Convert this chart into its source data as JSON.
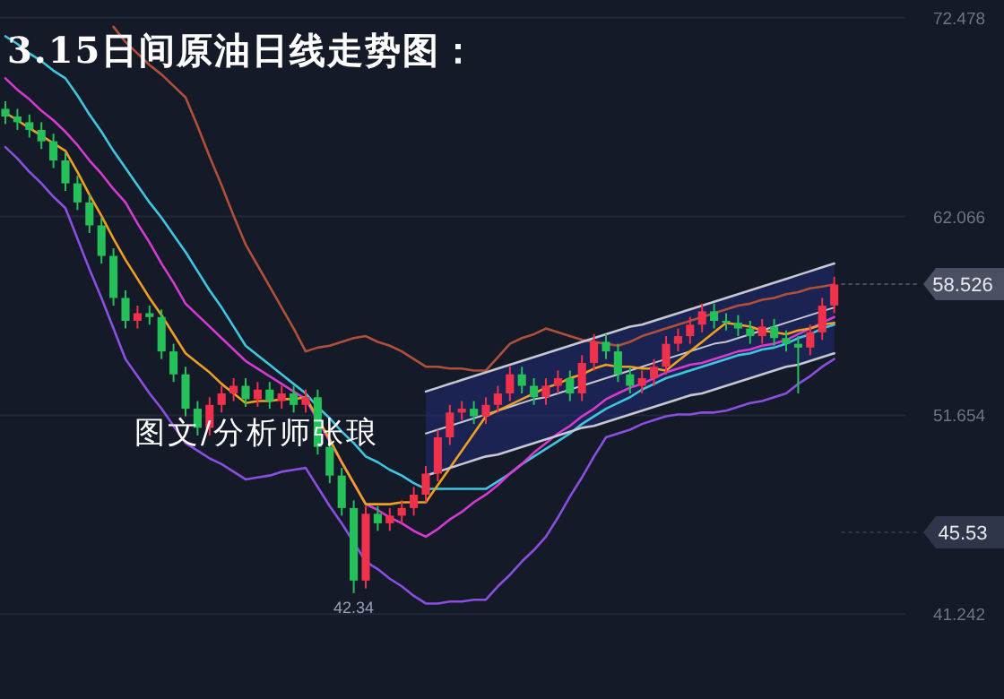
{
  "chart_data": {
    "type": "candlestick",
    "title": "3.15日间原油日线走势图：",
    "annotations": [
      "图文/分析师张琅",
      {
        "text": "42.34",
        "y": 42.34
      }
    ],
    "categories": [
      null,
      null,
      null,
      null,
      null,
      null,
      null,
      null,
      null,
      null,
      null,
      null,
      null,
      null,
      null,
      null,
      null,
      null,
      null,
      null,
      null,
      null,
      null,
      null,
      null,
      null,
      null,
      null,
      null,
      null,
      null,
      null,
      null,
      null,
      null,
      null,
      null,
      null,
      null,
      null,
      null,
      null,
      null,
      null,
      null,
      null,
      null,
      null,
      null,
      null,
      null,
      null,
      null,
      null,
      null,
      null,
      null,
      null,
      null,
      null,
      null,
      null,
      null,
      null,
      null,
      null,
      null,
      null,
      null,
      null
    ],
    "ohlc": [
      [
        67.7,
        68.1,
        66.9,
        67.3
      ],
      [
        67.3,
        67.7,
        66.6,
        67.0
      ],
      [
        67.0,
        67.4,
        66.2,
        66.6
      ],
      [
        66.6,
        67.0,
        65.6,
        66.0
      ],
      [
        66.0,
        66.4,
        64.6,
        65.0
      ],
      [
        65.0,
        65.4,
        63.4,
        63.8
      ],
      [
        63.8,
        64.2,
        62.4,
        62.8
      ],
      [
        62.8,
        63.2,
        61.2,
        61.6
      ],
      [
        61.6,
        62.0,
        59.6,
        60.0
      ],
      [
        60.0,
        60.4,
        57.4,
        57.8
      ],
      [
        57.8,
        58.2,
        56.2,
        56.6
      ],
      [
        56.6,
        57.4,
        56.2,
        57.0
      ],
      [
        57.0,
        57.4,
        56.4,
        56.8
      ],
      [
        56.8,
        57.2,
        54.6,
        55.0
      ],
      [
        55.0,
        55.4,
        53.4,
        53.8
      ],
      [
        53.8,
        54.2,
        51.6,
        52.0
      ],
      [
        52.0,
        52.4,
        50.6,
        51.0
      ],
      [
        51.0,
        52.6,
        50.6,
        52.2
      ],
      [
        52.2,
        53.2,
        51.8,
        52.8
      ],
      [
        52.8,
        53.6,
        52.4,
        53.2
      ],
      [
        53.2,
        53.6,
        52.1,
        52.5
      ],
      [
        52.5,
        53.4,
        52.1,
        53.0
      ],
      [
        53.0,
        53.4,
        52.0,
        52.4
      ],
      [
        52.4,
        53.2,
        52.0,
        52.8
      ],
      [
        52.8,
        53.2,
        51.8,
        52.2
      ],
      [
        52.2,
        53.0,
        51.8,
        52.6
      ],
      [
        52.6,
        53.0,
        49.6,
        50.0
      ],
      [
        50.0,
        50.4,
        48.1,
        48.5
      ],
      [
        48.5,
        48.9,
        46.4,
        46.8
      ],
      [
        46.8,
        47.2,
        42.34,
        43.0
      ],
      [
        43.0,
        46.9,
        42.6,
        46.5
      ],
      [
        46.5,
        46.9,
        45.6,
        46.0
      ],
      [
        46.0,
        46.8,
        45.6,
        46.4
      ],
      [
        46.4,
        47.2,
        46.0,
        46.8
      ],
      [
        46.8,
        47.9,
        46.4,
        47.5
      ],
      [
        47.5,
        49.0,
        47.1,
        48.6
      ],
      [
        48.6,
        50.9,
        48.2,
        50.5
      ],
      [
        50.5,
        52.2,
        50.1,
        51.8
      ],
      [
        51.8,
        52.4,
        51.4,
        52.0
      ],
      [
        52.0,
        52.4,
        51.2,
        51.6
      ],
      [
        51.6,
        52.6,
        51.2,
        52.2
      ],
      [
        52.2,
        53.2,
        51.8,
        52.8
      ],
      [
        52.8,
        54.2,
        52.4,
        53.8
      ],
      [
        53.8,
        54.2,
        52.8,
        53.2
      ],
      [
        53.2,
        53.6,
        52.2,
        52.6
      ],
      [
        52.6,
        53.6,
        52.2,
        53.2
      ],
      [
        53.2,
        54.0,
        52.8,
        53.6
      ],
      [
        53.6,
        54.0,
        52.4,
        52.8
      ],
      [
        52.8,
        54.8,
        52.4,
        54.4
      ],
      [
        54.4,
        55.9,
        54.0,
        55.5
      ],
      [
        55.5,
        55.9,
        54.6,
        55.0
      ],
      [
        55.0,
        55.4,
        53.4,
        53.8
      ],
      [
        53.8,
        54.2,
        52.8,
        53.2
      ],
      [
        53.2,
        54.0,
        52.8,
        53.6
      ],
      [
        53.6,
        54.6,
        53.2,
        54.2
      ],
      [
        54.2,
        55.8,
        53.8,
        55.4
      ],
      [
        55.4,
        56.2,
        55.0,
        55.8
      ],
      [
        55.8,
        56.8,
        55.4,
        56.4
      ],
      [
        56.4,
        57.5,
        56.0,
        57.1
      ],
      [
        57.1,
        57.5,
        56.2,
        56.6
      ],
      [
        56.6,
        57.0,
        56.1,
        56.5
      ],
      [
        56.5,
        56.9,
        55.8,
        56.2
      ],
      [
        56.2,
        56.6,
        55.4,
        55.8
      ],
      [
        55.8,
        56.7,
        55.4,
        56.3
      ],
      [
        56.3,
        56.7,
        55.3,
        55.7
      ],
      [
        55.7,
        56.1,
        55.0,
        55.4
      ],
      [
        55.4,
        55.8,
        52.8,
        55.2
      ],
      [
        55.2,
        56.4,
        54.8,
        56.0
      ],
      [
        56.0,
        57.8,
        55.6,
        57.4
      ],
      [
        57.4,
        58.9,
        57.0,
        58.5
      ]
    ],
    "series": [
      {
        "type": "line",
        "color": "#3fc6e0",
        "values": [
          71.5,
          71.1,
          70.6,
          70.2,
          69.7,
          69.3,
          68.4,
          67.4,
          66.5,
          65.5,
          64.6,
          63.7,
          62.8,
          62.0,
          61.1,
          60.2,
          59.2,
          58.2,
          57.3,
          56.3,
          55.3,
          54.8,
          54.3,
          53.8,
          53.3,
          52.8,
          52.1,
          51.5,
          50.8,
          50.2,
          49.5,
          49.2,
          48.8,
          48.5,
          48.1,
          47.8,
          47.8,
          47.8,
          47.8,
          47.8,
          47.8,
          48.2,
          48.6,
          49.1,
          49.5,
          49.9,
          50.3,
          50.7,
          51.2,
          51.6,
          52.0,
          52.3,
          52.6,
          53.0,
          53.3,
          53.6,
          53.8,
          54.0,
          54.2,
          54.4,
          54.6,
          54.8,
          54.9,
          55.1,
          55.2,
          55.4,
          55.7,
          55.9,
          56.2,
          56.4
        ]
      },
      {
        "type": "line",
        "color": "#d63ad0",
        "values": [
          69.3,
          68.7,
          68.2,
          67.6,
          67.1,
          66.5,
          65.8,
          65.0,
          64.3,
          63.5,
          62.8,
          61.7,
          60.7,
          59.6,
          58.6,
          57.5,
          56.9,
          56.3,
          55.7,
          55.1,
          54.5,
          54.1,
          53.7,
          53.3,
          52.9,
          52.5,
          51.4,
          50.3,
          49.2,
          48.1,
          47.0,
          46.7,
          46.3,
          46.0,
          45.6,
          45.3,
          45.7,
          46.2,
          46.6,
          47.1,
          47.5,
          48.0,
          48.6,
          49.1,
          49.7,
          50.2,
          50.7,
          51.1,
          51.6,
          52.0,
          52.5,
          52.8,
          53.1,
          53.3,
          53.6,
          53.9,
          54.1,
          54.3,
          54.4,
          54.6,
          54.8,
          55.0,
          55.1,
          55.3,
          55.4,
          55.6,
          55.9,
          56.2,
          56.5,
          56.8
        ]
      },
      {
        "type": "line",
        "color": "#f0a020",
        "values": [
          67.5,
          67.1,
          66.7,
          66.3,
          65.9,
          65.5,
          64.4,
          63.2,
          62.1,
          60.9,
          59.8,
          58.8,
          57.8,
          56.9,
          55.9,
          54.9,
          54.4,
          53.9,
          53.3,
          52.8,
          52.3,
          52.4,
          52.4,
          52.5,
          52.5,
          52.6,
          51.5,
          50.4,
          49.2,
          48.1,
          47.0,
          47.0,
          47.0,
          47.1,
          47.1,
          47.1,
          48.0,
          48.9,
          49.8,
          50.7,
          51.6,
          51.9,
          52.2,
          52.5,
          52.8,
          53.1,
          53.3,
          53.6,
          53.8,
          54.1,
          54.3,
          54.2,
          54.2,
          54.1,
          54.1,
          54.0,
          54.5,
          55.0,
          55.5,
          56.0,
          56.5,
          56.4,
          56.3,
          56.1,
          56.0,
          55.9,
          56.1,
          56.2,
          56.4,
          56.5
        ]
      },
      {
        "type": "line",
        "color": "#8a4fe0",
        "values": [
          65.7,
          65.1,
          64.4,
          63.8,
          63.1,
          62.5,
          60.9,
          59.3,
          57.8,
          56.2,
          54.6,
          53.7,
          52.8,
          52.0,
          51.1,
          50.2,
          49.8,
          49.4,
          49.1,
          48.7,
          48.3,
          48.4,
          48.5,
          48.7,
          48.8,
          48.9,
          47.9,
          46.9,
          46.0,
          45.0,
          44.0,
          43.6,
          43.1,
          42.7,
          42.2,
          41.8,
          41.8,
          41.9,
          41.9,
          42.0,
          42.0,
          42.7,
          43.3,
          44.0,
          44.6,
          45.3,
          46.3,
          47.4,
          48.4,
          49.5,
          50.5,
          50.7,
          50.9,
          51.2,
          51.4,
          51.6,
          51.7,
          51.7,
          51.8,
          51.8,
          51.9,
          52.1,
          52.3,
          52.4,
          52.6,
          52.8,
          53.3,
          53.7,
          54.2,
          54.6
        ]
      },
      {
        "type": "line",
        "color": "#b0503a",
        "values": [
          null,
          null,
          null,
          null,
          null,
          null,
          null,
          null,
          null,
          72.0,
          71.2,
          70.6,
          70.0,
          69.5,
          68.9,
          68.3,
          66.8,
          65.2,
          63.7,
          62.1,
          60.6,
          59.5,
          58.4,
          57.3,
          56.2,
          55.0,
          55.2,
          55.3,
          55.5,
          55.7,
          55.8,
          55.5,
          55.3,
          55.0,
          54.6,
          54.2,
          54.2,
          54.1,
          54.1,
          54.0,
          54.0,
          54.7,
          55.4,
          55.7,
          55.9,
          56.2,
          56.0,
          55.8,
          55.6,
          55.5,
          55.4,
          55.3,
          55.5,
          55.8,
          56.0,
          56.2,
          56.4,
          56.6,
          56.8,
          57.0,
          57.2,
          57.4,
          57.5,
          57.7,
          57.8,
          58.0,
          58.1,
          58.3,
          58.4,
          58.5
        ]
      },
      {
        "type": "line",
        "color": "#c8c8d4",
        "values": [
          null,
          null,
          null,
          null,
          null,
          null,
          null,
          null,
          null,
          null,
          null,
          null,
          null,
          null,
          null,
          null,
          null,
          null,
          null,
          null,
          null,
          null,
          null,
          null,
          null,
          null,
          null,
          null,
          null,
          null,
          null,
          null,
          null,
          null,
          null,
          50.7,
          50.9,
          51.1,
          51.3,
          51.5,
          51.7,
          51.9,
          52.1,
          52.3,
          52.5,
          52.6,
          52.8,
          53.0,
          53.2,
          53.4,
          53.6,
          53.8,
          54.0,
          54.2,
          54.4,
          54.6,
          54.8,
          55.0,
          55.2,
          55.4,
          55.5,
          55.7,
          55.9,
          56.1,
          56.3,
          56.5,
          56.7,
          56.9,
          57.1,
          57.3
        ],
        "lower": [
          null,
          null,
          null,
          null,
          null,
          null,
          null,
          null,
          null,
          null,
          null,
          null,
          null,
          null,
          null,
          null,
          null,
          null,
          null,
          null,
          null,
          null,
          null,
          null,
          null,
          null,
          null,
          null,
          null,
          null,
          null,
          null,
          null,
          null,
          null,
          48.5,
          48.7,
          48.9,
          49.1,
          49.3,
          49.5,
          49.6,
          49.8,
          50.0,
          50.2,
          50.4,
          50.6,
          50.8,
          51.0,
          51.1,
          51.3,
          51.5,
          51.7,
          51.9,
          52.1,
          52.3,
          52.5,
          52.7,
          52.8,
          53.0,
          53.2,
          53.4,
          53.6,
          53.8,
          54.0,
          54.2,
          54.3,
          54.5,
          54.7,
          54.9
        ],
        "upper": [
          null,
          null,
          null,
          null,
          null,
          null,
          null,
          null,
          null,
          null,
          null,
          null,
          null,
          null,
          null,
          null,
          null,
          null,
          null,
          null,
          null,
          null,
          null,
          null,
          null,
          null,
          null,
          null,
          null,
          null,
          null,
          null,
          null,
          null,
          null,
          52.9,
          53.1,
          53.3,
          53.5,
          53.7,
          53.9,
          54.1,
          54.3,
          54.5,
          54.7,
          54.9,
          55.1,
          55.3,
          55.5,
          55.7,
          55.9,
          56.1,
          56.3,
          56.4,
          56.6,
          56.8,
          57.0,
          57.2,
          57.4,
          57.6,
          57.8,
          58.0,
          58.2,
          58.4,
          58.6,
          58.8,
          59.0,
          59.2,
          59.4,
          59.6
        ]
      },
      {
        "type": "line",
        "color": "#c8c8d4",
        "values": [
          null,
          null,
          null,
          null,
          null,
          null,
          null,
          null,
          null,
          null,
          null,
          null,
          null,
          null,
          null,
          null,
          null,
          null,
          null,
          null,
          null,
          null,
          null,
          null,
          null,
          null,
          null,
          null,
          null,
          null,
          null,
          null,
          null,
          null,
          null,
          48.5,
          48.7,
          48.9,
          49.1,
          49.3,
          49.5,
          49.6,
          49.8,
          50.0,
          50.2,
          50.4,
          50.6,
          50.8,
          51.0,
          51.1,
          51.3,
          51.5,
          51.7,
          51.9,
          52.1,
          52.3,
          52.5,
          52.7,
          52.8,
          53.0,
          53.2,
          53.4,
          53.6,
          53.8,
          54.0,
          54.2,
          54.3,
          54.5,
          54.7,
          54.9
        ]
      },
      {
        "type": "line",
        "color": "#c8c8d4",
        "values": [
          null,
          null,
          null,
          null,
          null,
          null,
          null,
          null,
          null,
          null,
          null,
          null,
          null,
          null,
          null,
          null,
          null,
          null,
          null,
          null,
          null,
          null,
          null,
          null,
          null,
          null,
          null,
          null,
          null,
          null,
          null,
          null,
          null,
          null,
          null,
          52.9,
          53.1,
          53.3,
          53.5,
          53.7,
          53.9,
          54.1,
          54.3,
          54.5,
          54.7,
          54.9,
          55.1,
          55.3,
          55.5,
          55.7,
          55.9,
          56.1,
          56.3,
          56.4,
          56.6,
          56.8,
          57.0,
          57.2,
          57.4,
          57.6,
          57.8,
          58.0,
          58.2,
          58.4,
          58.6,
          58.8,
          59.0,
          59.2,
          59.4,
          59.6
        ]
      }
    ],
    "ylim": [
      36.8,
      73.4
    ],
    "yticks": [
      41.242,
      51.654,
      62.066,
      72.478
    ],
    "tick_labels": "y",
    "grid": "y",
    "ref_lines": [
      {
        "axis": "y",
        "value": 58.526,
        "label": "58.526",
        "color": "#4a4f62"
      },
      {
        "axis": "y",
        "value": 45.53,
        "label": "45.53",
        "color": "#30364a"
      }
    ]
  }
}
